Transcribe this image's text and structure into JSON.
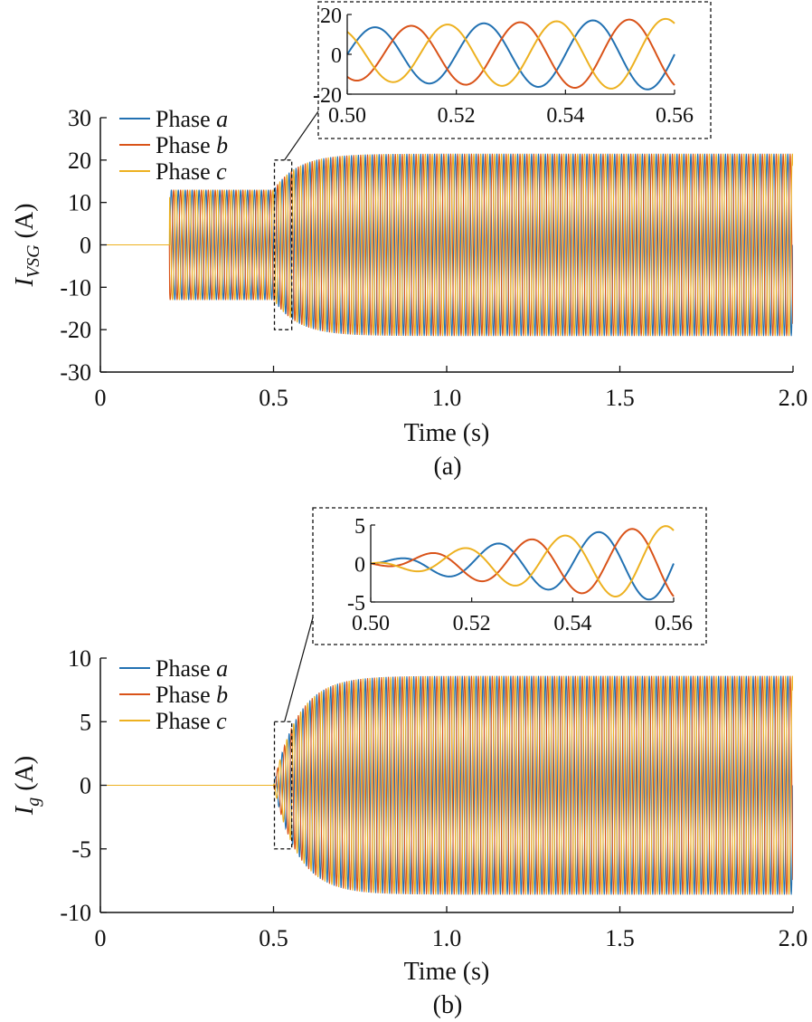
{
  "colors": {
    "phase_a": "#2271b2",
    "phase_b": "#d95319",
    "phase_c": "#edb120",
    "axis": "#111111"
  },
  "chart_data": [
    {
      "type": "line",
      "panel_label": "(a)",
      "xlabel": "Time (s)",
      "ylabel_main": "I",
      "ylabel_sub": "VSG",
      "ylabel_unit": "(A)",
      "xlim": [
        0,
        2.0
      ],
      "ylim": [
        -30,
        30
      ],
      "xticks": [
        0,
        0.5,
        1.0,
        1.5,
        2.0
      ],
      "xtick_labels": [
        "0",
        "0.5",
        "1.0",
        "1.5",
        "2.0"
      ],
      "yticks": [
        30,
        20,
        10,
        0,
        -10,
        -20,
        -30
      ],
      "ytick_labels": [
        "30",
        "20",
        "10",
        "0",
        "-10",
        "-20",
        "-30"
      ],
      "legend_position": "top-left",
      "series": [
        {
          "name_prefix": "Phase ",
          "name_var": "a",
          "color": "#2271b2",
          "phase_deg": 0
        },
        {
          "name_prefix": "Phase ",
          "name_var": "b",
          "color": "#d95319",
          "phase_deg": -120
        },
        {
          "name_prefix": "Phase ",
          "name_var": "c",
          "color": "#edb120",
          "phase_deg": 120
        }
      ],
      "frequency_hz": 50,
      "envelope": {
        "zero_until_s": 0.2,
        "step_amplitude_A": 13,
        "ramp_start_s": 0.5,
        "steady_amplitude_A": 21.5,
        "time_constant_s": 0.07
      },
      "zoom_window": {
        "x": [
          0.5,
          0.55
        ],
        "y": [
          -20,
          20
        ]
      },
      "inset": {
        "xlim": [
          0.5,
          0.56
        ],
        "ylim": [
          -20,
          20
        ],
        "xticks": [
          0.5,
          0.52,
          0.54,
          0.56
        ],
        "xtick_labels": [
          "0.50",
          "0.52",
          "0.54",
          "0.56"
        ],
        "yticks": [
          20,
          0,
          -20
        ],
        "ytick_labels": [
          "20",
          "0",
          "-20"
        ]
      }
    },
    {
      "type": "line",
      "panel_label": "(b)",
      "xlabel": "Time (s)",
      "ylabel_main": "I",
      "ylabel_sub": "g",
      "ylabel_unit": "(A)",
      "xlim": [
        0,
        2.0
      ],
      "ylim": [
        -10,
        10
      ],
      "xticks": [
        0,
        0.5,
        1.0,
        1.5,
        2.0
      ],
      "xtick_labels": [
        "0",
        "0.5",
        "1.0",
        "1.5",
        "2.0"
      ],
      "yticks": [
        10,
        5,
        0,
        -5,
        -10
      ],
      "ytick_labels": [
        "10",
        "5",
        "0",
        "-5",
        "-10"
      ],
      "legend_position": "top-left",
      "series": [
        {
          "name_prefix": "Phase ",
          "name_var": "a",
          "color": "#2271b2",
          "phase_deg": 0
        },
        {
          "name_prefix": "Phase ",
          "name_var": "b",
          "color": "#d95319",
          "phase_deg": -120
        },
        {
          "name_prefix": "Phase ",
          "name_var": "c",
          "color": "#edb120",
          "phase_deg": 120
        }
      ],
      "frequency_hz": 50,
      "envelope": {
        "zero_until_s": 0.5,
        "step_amplitude_A": 0,
        "ramp_start_s": 0.5,
        "steady_amplitude_A": 8.6,
        "time_constant_s": 0.07
      },
      "zoom_window": {
        "x": [
          0.5,
          0.55
        ],
        "y": [
          -5,
          5
        ]
      },
      "inset": {
        "xlim": [
          0.5,
          0.56
        ],
        "ylim": [
          -5,
          5
        ],
        "xticks": [
          0.5,
          0.52,
          0.54,
          0.56
        ],
        "xtick_labels": [
          "0.50",
          "0.52",
          "0.54",
          "0.56"
        ],
        "yticks": [
          5,
          0,
          -5
        ],
        "ytick_labels": [
          "5",
          "0",
          "-5"
        ]
      }
    }
  ]
}
